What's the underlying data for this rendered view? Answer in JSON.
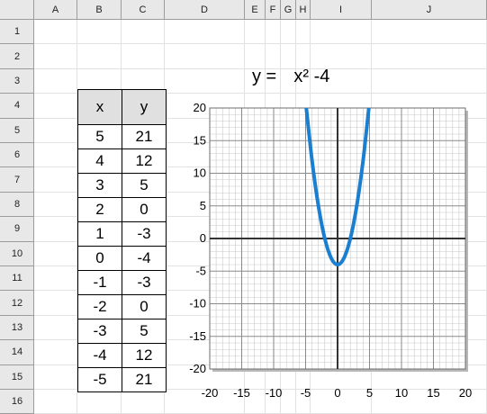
{
  "spreadsheet": {
    "columns": [
      "A",
      "B",
      "C",
      "D",
      "E",
      "F",
      "G",
      "H",
      "I",
      "J"
    ],
    "rows": [
      "1",
      "2",
      "3",
      "4",
      "5",
      "6",
      "7",
      "8",
      "9",
      "10",
      "11",
      "12",
      "13",
      "14",
      "15",
      "16"
    ]
  },
  "equation": {
    "lhs": "y =",
    "rhs": "x² -4"
  },
  "table": {
    "headers": [
      "x",
      "y"
    ],
    "rows": [
      [
        "5",
        "21"
      ],
      [
        "4",
        "12"
      ],
      [
        "3",
        "5"
      ],
      [
        "2",
        "0"
      ],
      [
        "1",
        "-3"
      ],
      [
        "0",
        "-4"
      ],
      [
        "-1",
        "-3"
      ],
      [
        "-2",
        "0"
      ],
      [
        "-3",
        "5"
      ],
      [
        "-4",
        "12"
      ],
      [
        "-5",
        "21"
      ]
    ]
  },
  "chart_data": {
    "type": "line",
    "title": "",
    "xlabel": "",
    "ylabel": "",
    "xlim": [
      -20,
      20
    ],
    "ylim": [
      -20,
      20
    ],
    "xticks": [
      -20,
      -15,
      -10,
      -5,
      0,
      5,
      10,
      15,
      20
    ],
    "yticks": [
      -20,
      -15,
      -10,
      -5,
      0,
      5,
      10,
      15,
      20
    ],
    "grid": true,
    "line_color": "#1a7fd0",
    "series": [
      {
        "x": [
          5,
          4,
          3,
          2,
          1,
          0,
          -1,
          -2,
          -3,
          -4,
          -5
        ],
        "y": [
          21,
          12,
          5,
          0,
          -3,
          -4,
          -3,
          0,
          5,
          12,
          21
        ]
      }
    ]
  }
}
